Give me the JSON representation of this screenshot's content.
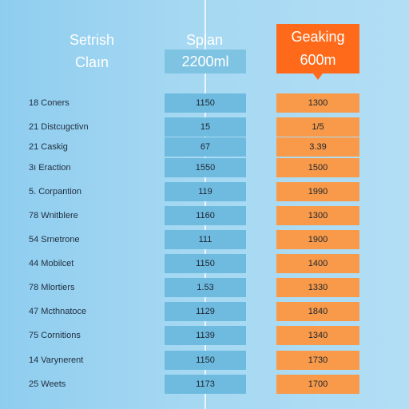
{
  "chart_data": {
    "type": "table",
    "columns": [
      {
        "line1": "Setrish",
        "line2": "Claın"
      },
      {
        "line1": "Splan",
        "line2": "2200ml"
      },
      {
        "line1": "Geaking",
        "line2": "600m"
      }
    ],
    "rows": [
      {
        "label": "18 Coners",
        "mid": "1150",
        "right": "1300"
      },
      {
        "label": "21 Distcugctivn",
        "mid": "15",
        "right": "1/5"
      },
      {
        "label": "21 Caskig",
        "mid": "67",
        "right": "3.39"
      },
      {
        "label": "3ı Eraction",
        "mid": "1550",
        "right": "1500"
      },
      {
        "label": "5. Corpantion",
        "mid": "119",
        "right": "1990"
      },
      {
        "label": "78 Wnitblere",
        "mid": "1160",
        "right": "1300"
      },
      {
        "label": "54 Srnetrone",
        "mid": "111",
        "right": "1900"
      },
      {
        "label": "44 Mobilcet",
        "mid": "1150",
        "right": "1400"
      },
      {
        "label": "78 Mlortiers",
        "mid": "1.53",
        "right": "1330"
      },
      {
        "label": "47 Mcthnatoce",
        "mid": "1129",
        "right": "1840"
      },
      {
        "label": "75 Cornitions",
        "mid": "1139",
        "right": "1340"
      },
      {
        "label": "14 Varynerent",
        "mid": "1150",
        "right": "1730"
      },
      {
        "label": "25 Weets",
        "mid": "1173",
        "right": "1700"
      }
    ],
    "colors": {
      "mid": "#6fbbe0",
      "right": "#f89a49",
      "highlight": "#ff6a1a"
    }
  }
}
